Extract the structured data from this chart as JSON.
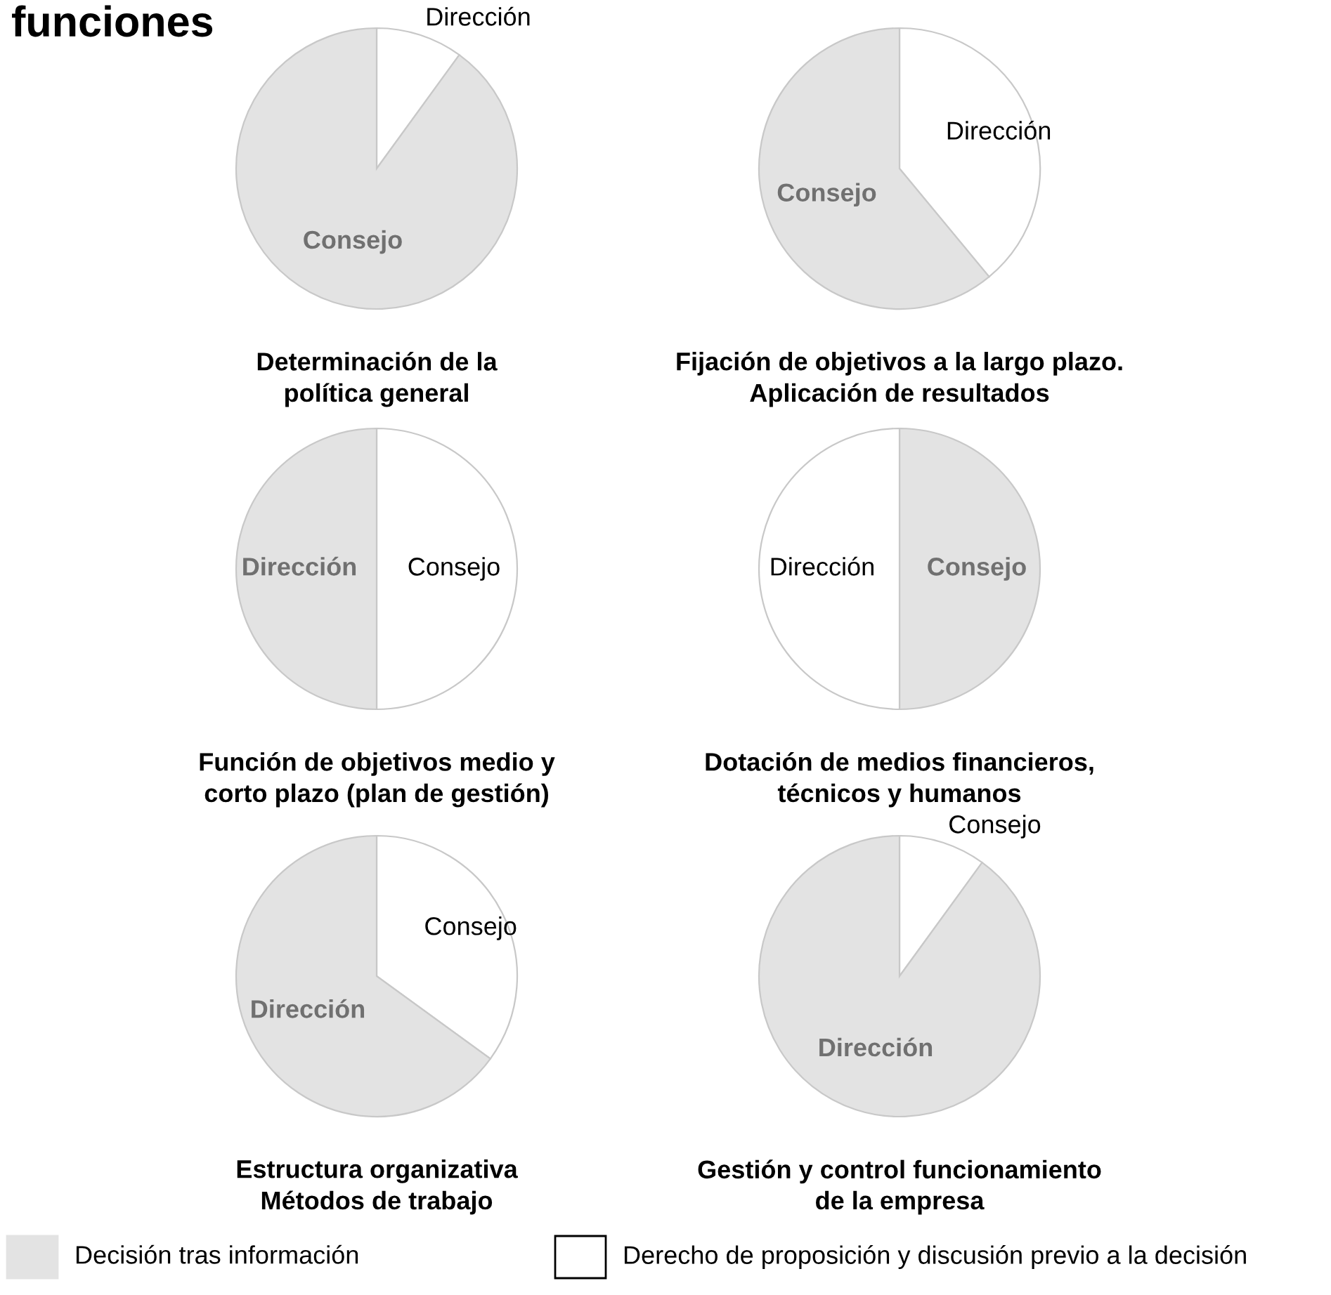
{
  "chart_data": [
    {
      "type": "pie",
      "title": "Determinación de la\npolítica general",
      "categories": [
        "Dirección",
        "Consejo"
      ],
      "values": [
        10,
        90
      ],
      "colors": [
        "#ffffff",
        "#e3e3e3"
      ]
    },
    {
      "type": "pie",
      "title": "Fijación de objetivos a la largo plazo.\nAplicación de resultados",
      "categories": [
        "Dirección",
        "Consejo"
      ],
      "values": [
        39,
        61
      ],
      "colors": [
        "#ffffff",
        "#e3e3e3"
      ]
    },
    {
      "type": "pie",
      "title": "Función de objetivos medio y\ncorto plazo (plan de gestión)",
      "categories": [
        "Consejo",
        "Dirección"
      ],
      "values": [
        50,
        50
      ],
      "colors": [
        "#ffffff",
        "#e3e3e3"
      ]
    },
    {
      "type": "pie",
      "title": "Dotación de medios financieros,\ntécnicos y humanos",
      "categories": [
        "Consejo",
        "Dirección"
      ],
      "values": [
        50,
        50
      ],
      "colors": [
        "#e3e3e3",
        "#ffffff"
      ]
    },
    {
      "type": "pie",
      "title": "Estructura organizativa\nMétodos de trabajo",
      "categories": [
        "Consejo",
        "Dirección"
      ],
      "values": [
        35,
        65
      ],
      "colors": [
        "#ffffff",
        "#e3e3e3"
      ]
    },
    {
      "type": "pie",
      "title": "Gestión y control funcionamiento\nde la empresa",
      "categories": [
        "Consejo",
        "Dirección"
      ],
      "values": [
        10,
        90
      ],
      "colors": [
        "#ffffff",
        "#e3e3e3"
      ]
    },
    {
      "type": "other",
      "title": "funciones",
      "categories": [
        "Decisión tras información",
        "Derecho de proposición y discusión previo a la decisión"
      ],
      "colors": [
        "#e3e3e3",
        "#ffffff"
      ]
    }
  ]
}
